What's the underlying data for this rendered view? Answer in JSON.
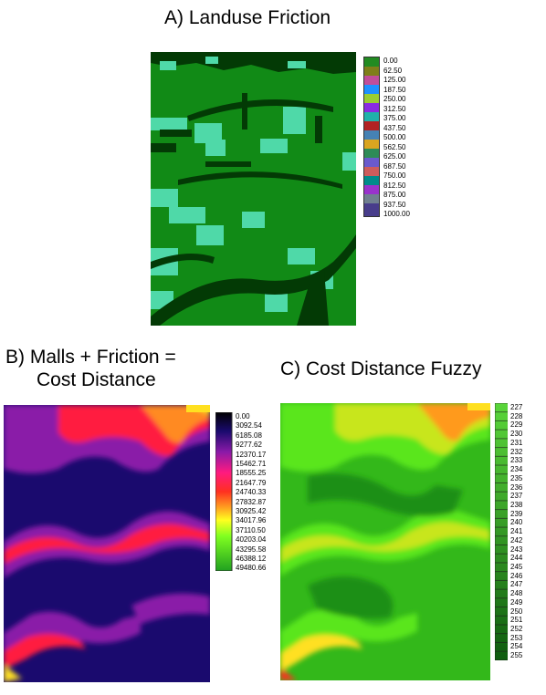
{
  "titles": {
    "a": "A) Landuse Friction",
    "b_line1": "B) Malls + Friction =",
    "b_line2": "Cost Distance",
    "c": "C) Cost Distance Fuzzy"
  },
  "legend_a": {
    "labels": [
      "0.00",
      "62.50",
      "125.00",
      "187.50",
      "250.00",
      "312.50",
      "375.00",
      "437.50",
      "500.00",
      "562.50",
      "625.00",
      "687.50",
      "750.00",
      "812.50",
      "875.00",
      "937.50",
      "1000.00"
    ]
  },
  "legend_b": {
    "labels": [
      "0.00",
      "3092.54",
      "6185.08",
      "9277.62",
      "12370.17",
      "15462.71",
      "18555.25",
      "21647.79",
      "24740.33",
      "27832.87",
      "30925.42",
      "34017.96",
      "37110.50",
      "40203.04",
      "43295.58",
      "46388.12",
      "49480.66"
    ]
  },
  "legend_c": {
    "labels": [
      "227",
      "228",
      "229",
      "230",
      "231",
      "232",
      "233",
      "234",
      "235",
      "236",
      "237",
      "238",
      "239",
      "240",
      "241",
      "242",
      "243",
      "244",
      "245",
      "246",
      "247",
      "248",
      "249",
      "250",
      "251",
      "252",
      "253",
      "254",
      "255"
    ]
  },
  "colors": {
    "landuse_green": "#118a16",
    "landuse_dark": "#033a05",
    "landuse_aqua": "#4fd9a8",
    "cost_navy": "#1a0a6e",
    "cost_purple": "#8a1aa8",
    "cost_red": "#ff1a40",
    "cost_yellow": "#ffe020",
    "fuzzy_green": "#33b81a",
    "fuzzy_light": "#5ae61e"
  }
}
